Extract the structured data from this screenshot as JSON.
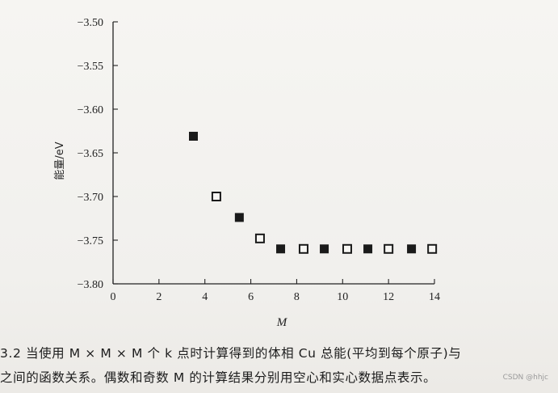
{
  "chart_data": {
    "type": "scatter",
    "xlabel": "M",
    "ylabel": "能量/eV",
    "xlim": [
      0,
      14
    ],
    "ylim": [
      -3.8,
      -3.5
    ],
    "x_ticks": [
      "0",
      "2",
      "4",
      "6",
      "8",
      "10",
      "12",
      "14"
    ],
    "y_ticks": [
      "-3.50",
      "-3.55",
      "-3.60",
      "-3.65",
      "-3.70",
      "-3.75",
      "-3.80"
    ],
    "grid": false,
    "series": [
      {
        "marker": "filled-square",
        "color": "#1a1a1a",
        "points": [
          {
            "x": 3.5,
            "y": -3.631
          },
          {
            "x": 5.5,
            "y": -3.724
          },
          {
            "x": 7.3,
            "y": -3.76
          },
          {
            "x": 9.2,
            "y": -3.76
          },
          {
            "x": 11.1,
            "y": -3.76
          },
          {
            "x": 13.0,
            "y": -3.76
          }
        ]
      },
      {
        "marker": "open-square",
        "color": "#1a1a1a",
        "points": [
          {
            "x": 4.5,
            "y": -3.7
          },
          {
            "x": 6.4,
            "y": -3.748
          },
          {
            "x": 8.3,
            "y": -3.76
          },
          {
            "x": 10.2,
            "y": -3.76
          },
          {
            "x": 12.0,
            "y": -3.76
          },
          {
            "x": 13.9,
            "y": -3.76
          }
        ]
      }
    ]
  },
  "caption": {
    "line1": "3.2  当使用 M × M × M 个 k 点时计算得到的体相 Cu 总能(平均到每个原子)与",
    "line2": "之间的函数关系。偶数和奇数 M 的计算结果分别用空心和实心数据点表示。"
  },
  "watermark": "CSDN @hhjc"
}
